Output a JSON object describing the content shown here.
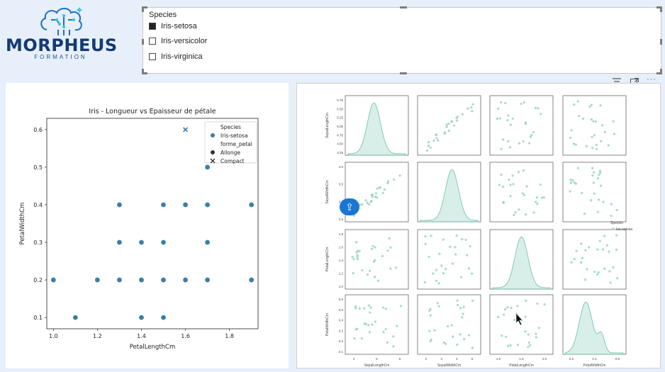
{
  "logo": {
    "brand": "MORPHEUS",
    "subtitle": "FORMATION"
  },
  "slicer": {
    "title": "Species",
    "items": [
      {
        "label": "Iris-setosa",
        "checked": true
      },
      {
        "label": "Iris-versicolor",
        "checked": false
      },
      {
        "label": "Iris-virginica",
        "checked": false
      }
    ]
  },
  "header_icons": {
    "filter": "filter-icon",
    "focus": "focus-mode-icon",
    "more": "more-options-icon"
  },
  "chart_data": [
    {
      "type": "scatter",
      "title": "Iris - Longueur vs Epaisseur de pétale",
      "xlabel": "PetalLengthCm",
      "ylabel": "PetalWidthCm",
      "xlim": [
        0.97,
        1.93
      ],
      "ylim": [
        0.07,
        0.63
      ],
      "xticks": [
        "1.0",
        "1.2",
        "1.4",
        "1.6",
        "1.8"
      ],
      "yticks": [
        "0.1",
        "0.2",
        "0.3",
        "0.4",
        "0.5",
        "0.6"
      ],
      "xtick_values": [
        1.0,
        1.2,
        1.4,
        1.6,
        1.8
      ],
      "ytick_values": [
        0.1,
        0.2,
        0.3,
        0.4,
        0.5,
        0.6
      ],
      "color": "#3b7fa8",
      "legend": {
        "position": "top-right",
        "entries": [
          "Species",
          "Iris-setosa",
          "forme_petal",
          "Allonge",
          "Compact"
        ]
      },
      "series": [
        {
          "name": "Allonge",
          "marker": "circle",
          "points": [
            [
              1.0,
              0.2
            ],
            [
              1.1,
              0.1
            ],
            [
              1.2,
              0.2
            ],
            [
              1.3,
              0.2
            ],
            [
              1.3,
              0.3
            ],
            [
              1.3,
              0.4
            ],
            [
              1.4,
              0.1
            ],
            [
              1.4,
              0.2
            ],
            [
              1.4,
              0.3
            ],
            [
              1.5,
              0.1
            ],
            [
              1.5,
              0.2
            ],
            [
              1.5,
              0.3
            ],
            [
              1.5,
              0.4
            ],
            [
              1.6,
              0.2
            ],
            [
              1.6,
              0.4
            ],
            [
              1.7,
              0.2
            ],
            [
              1.7,
              0.3
            ],
            [
              1.7,
              0.4
            ],
            [
              1.7,
              0.5
            ],
            [
              1.9,
              0.2
            ],
            [
              1.9,
              0.4
            ]
          ]
        },
        {
          "name": "Compact",
          "marker": "x",
          "points": [
            [
              1.6,
              0.6
            ]
          ]
        }
      ]
    },
    {
      "type": "pairplot",
      "legend": {
        "position": "right",
        "entries": [
          "Species",
          "Iris-setosa"
        ]
      },
      "color": "#8fd1c0",
      "variables": [
        "SepalLengthCm",
        "SepalWidthCm",
        "PetalLengthCm",
        "PetalWidthCm"
      ],
      "row_ticks": [
        [
          "4.25",
          "4.50",
          "4.75",
          "5.00",
          "5.25",
          "5.50",
          "5.75"
        ],
        [
          "2.5",
          "3.0",
          "3.5",
          "4.0"
        ],
        [
          "1.0",
          "1.2",
          "1.4",
          "1.6",
          "1.8"
        ],
        [
          "0.1",
          "0.2",
          "0.3",
          "0.4",
          "0.5",
          "0.6"
        ]
      ],
      "col_ticks": [
        [
          "4",
          "5",
          "6"
        ],
        [
          "2",
          "3",
          "4",
          "5"
        ],
        [
          "1.0",
          "1.5",
          "2.0"
        ],
        [
          "0.2",
          "0.4",
          "0.6"
        ]
      ]
    }
  ]
}
